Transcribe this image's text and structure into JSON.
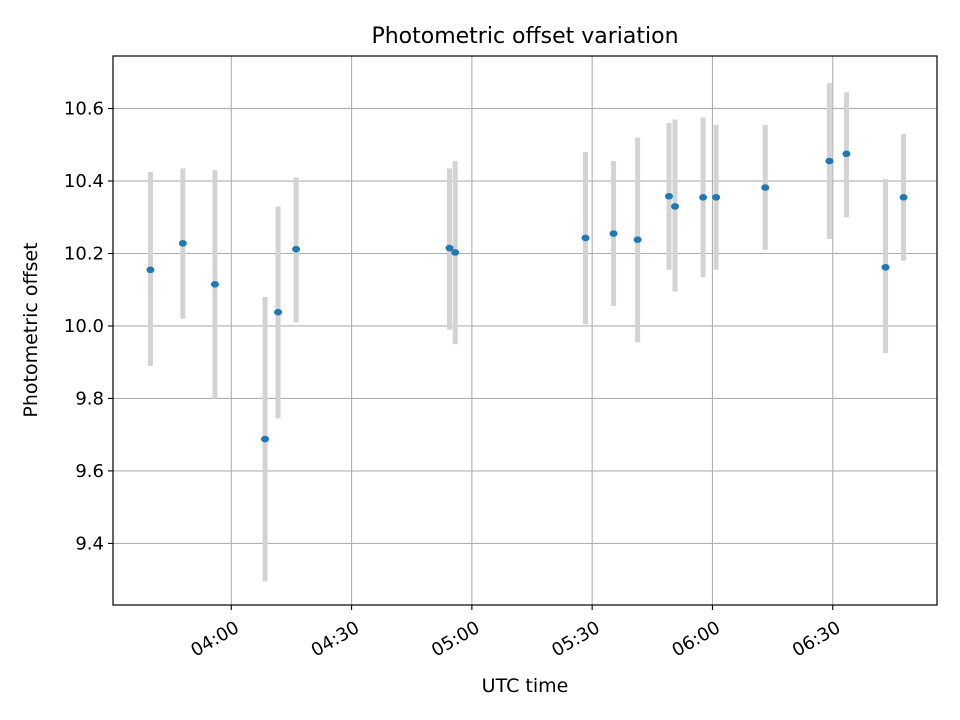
{
  "chart_data": {
    "type": "scatter",
    "title": "Photometric offset variation",
    "xlabel": "UTC time",
    "ylabel": "Photometric offset",
    "xlim": [
      "03:30:30",
      "06:56:00"
    ],
    "ylim": [
      9.23,
      10.745
    ],
    "x_ticks": [
      "04:00",
      "04:30",
      "05:00",
      "05:30",
      "06:00",
      "06:30"
    ],
    "y_ticks": [
      9.4,
      9.6,
      9.8,
      10.0,
      10.2,
      10.4,
      10.6
    ],
    "y_tick_labels": [
      "9.4",
      "9.6",
      "9.8",
      "10.0",
      "10.2",
      "10.4",
      "10.6"
    ],
    "grid": true,
    "point_color": "#1f77b4",
    "errorbar_color": "#d3d3d3",
    "series": [
      {
        "points": [
          {
            "x": "03:39:50",
            "y": 10.155,
            "ylo": 9.89,
            "yhi": 10.425
          },
          {
            "x": "03:47:55",
            "y": 10.228,
            "ylo": 10.02,
            "yhi": 10.435
          },
          {
            "x": "03:55:55",
            "y": 10.115,
            "ylo": 9.8,
            "yhi": 10.43
          },
          {
            "x": "04:08:25",
            "y": 9.688,
            "ylo": 9.295,
            "yhi": 10.08
          },
          {
            "x": "04:11:40",
            "y": 10.038,
            "ylo": 9.745,
            "yhi": 10.33
          },
          {
            "x": "04:16:10",
            "y": 10.212,
            "ylo": 10.01,
            "yhi": 10.41
          },
          {
            "x": "04:54:25",
            "y": 10.215,
            "ylo": 9.99,
            "yhi": 10.435
          },
          {
            "x": "04:55:50",
            "y": 10.203,
            "ylo": 9.95,
            "yhi": 10.455
          },
          {
            "x": "05:28:20",
            "y": 10.243,
            "ylo": 10.005,
            "yhi": 10.48
          },
          {
            "x": "05:35:20",
            "y": 10.255,
            "ylo": 10.055,
            "yhi": 10.455
          },
          {
            "x": "05:41:20",
            "y": 10.238,
            "ylo": 9.955,
            "yhi": 10.52
          },
          {
            "x": "05:49:10",
            "y": 10.358,
            "ylo": 10.155,
            "yhi": 10.56
          },
          {
            "x": "05:50:40",
            "y": 10.33,
            "ylo": 10.095,
            "yhi": 10.57
          },
          {
            "x": "05:57:40",
            "y": 10.355,
            "ylo": 10.135,
            "yhi": 10.575
          },
          {
            "x": "06:00:55",
            "y": 10.355,
            "ylo": 10.155,
            "yhi": 10.555
          },
          {
            "x": "06:13:10",
            "y": 10.382,
            "ylo": 10.21,
            "yhi": 10.555
          },
          {
            "x": "06:29:10",
            "y": 10.455,
            "ylo": 10.24,
            "yhi": 10.67
          },
          {
            "x": "06:33:25",
            "y": 10.475,
            "ylo": 10.3,
            "yhi": 10.645
          },
          {
            "x": "06:43:10",
            "y": 10.162,
            "ylo": 9.925,
            "yhi": 10.405
          },
          {
            "x": "06:47:40",
            "y": 10.355,
            "ylo": 10.18,
            "yhi": 10.53
          }
        ]
      }
    ]
  }
}
